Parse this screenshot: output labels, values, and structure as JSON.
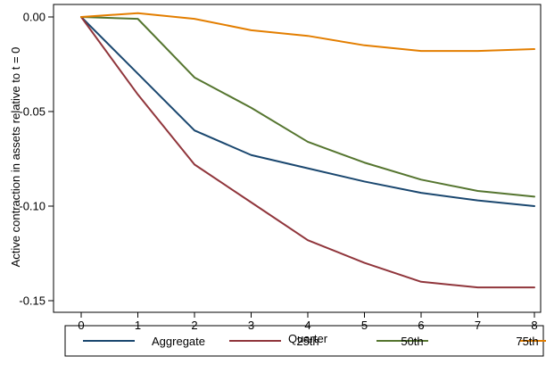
{
  "chart_data": {
    "type": "line",
    "title": "",
    "xlabel": "Quarter",
    "ylabel": "Active contraction in assets relative to t = 0",
    "x": [
      0,
      1,
      2,
      3,
      4,
      5,
      6,
      7,
      8
    ],
    "xticks": [
      "0",
      "1",
      "2",
      "3",
      "4",
      "5",
      "6",
      "7",
      "8"
    ],
    "yticks": [
      0.0,
      -0.05,
      -0.1,
      -0.15
    ],
    "ytick_labels": [
      "0.00",
      "-0.05",
      "-0.10",
      "-0.15"
    ],
    "xlim": [
      0,
      8
    ],
    "ylim": [
      -0.152,
      0.002
    ],
    "grid": false,
    "legend_position": "bottom",
    "series": [
      {
        "name": "Aggregate",
        "color": "#1a476f",
        "values": [
          0.0,
          -0.03,
          -0.06,
          -0.073,
          -0.08,
          -0.087,
          -0.093,
          -0.097,
          -0.1
        ]
      },
      {
        "name": "25th",
        "color": "#90353b",
        "values": [
          0.0,
          -0.041,
          -0.078,
          -0.098,
          -0.118,
          -0.13,
          -0.14,
          -0.143,
          -0.143
        ]
      },
      {
        "name": "50th",
        "color": "#55752f",
        "values": [
          0.0,
          -0.001,
          -0.032,
          -0.048,
          -0.066,
          -0.077,
          -0.086,
          -0.092,
          -0.095
        ]
      },
      {
        "name": "75th",
        "color": "#e37e00",
        "values": [
          0.0,
          0.002,
          -0.001,
          -0.007,
          -0.01,
          -0.015,
          -0.018,
          -0.018,
          -0.017
        ]
      }
    ]
  }
}
